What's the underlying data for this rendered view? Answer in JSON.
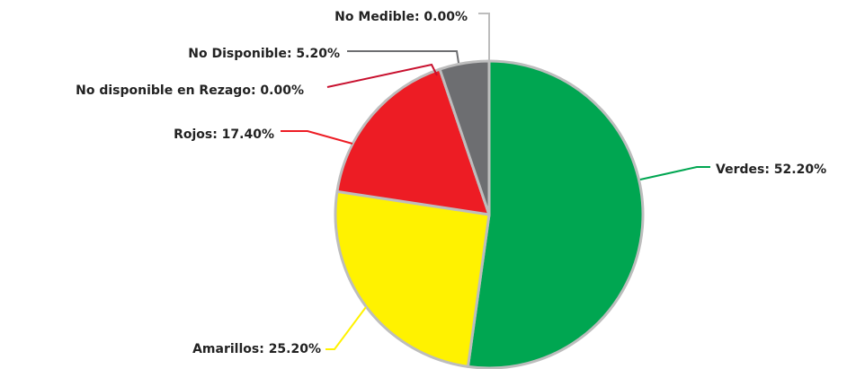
{
  "chart_data": {
    "type": "pie",
    "values": [
      52.2,
      25.2,
      17.4,
      0,
      5.2,
      0
    ],
    "value_labels": [
      "Verdes: 52.20%",
      "Amarillos: 25.20%",
      "Rojos: 17.40%",
      "No disponible en Rezago: 0.00%",
      "No Disponible: 5.20%",
      "No Medible: 0.00%"
    ],
    "colors": [
      "#00a651",
      "#fff200",
      "#ed1c24",
      "#c8102e",
      "#6d6e71",
      "#bdbdbd"
    ]
  }
}
